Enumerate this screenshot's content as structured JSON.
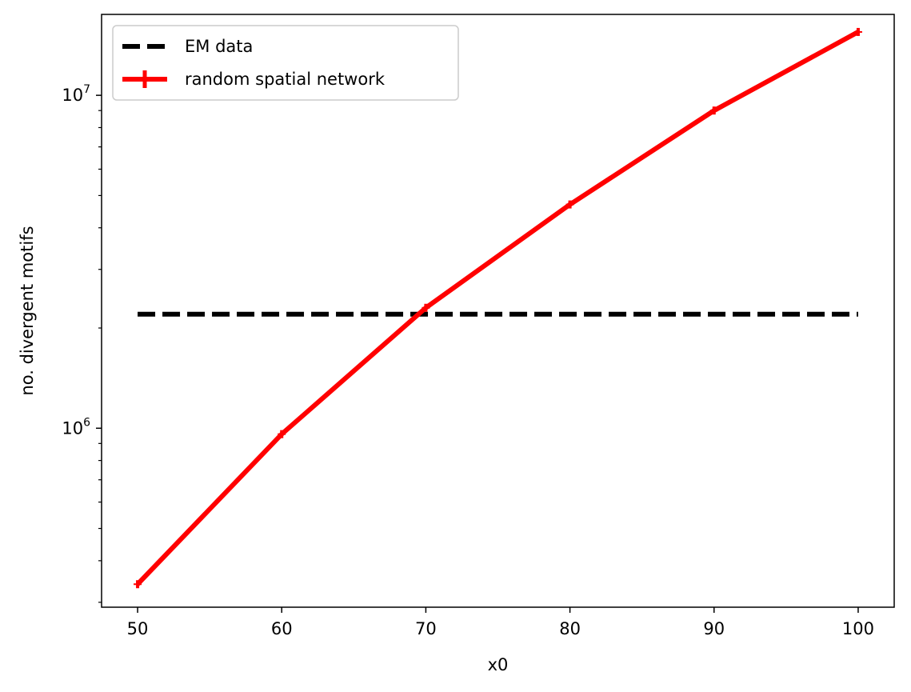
{
  "chart_data": {
    "type": "line",
    "xlabel": "x0",
    "ylabel": "no. divergent motifs",
    "yscale": "log",
    "xlim": [
      47.5,
      102.5
    ],
    "ylim": [
      290000,
      17500000
    ],
    "x_ticks": [
      50,
      60,
      70,
      80,
      90,
      100
    ],
    "x_tick_labels": [
      "50",
      "60",
      "70",
      "80",
      "90",
      "100"
    ],
    "y_major_ticks": [
      {
        "value": 1000000,
        "base": "10",
        "exp": "6"
      },
      {
        "value": 10000000,
        "base": "10",
        "exp": "7"
      }
    ],
    "y_minor_ticks": [
      300000,
      400000,
      500000,
      600000,
      700000,
      800000,
      900000,
      2000000,
      3000000,
      4000000,
      5000000,
      6000000,
      7000000,
      8000000,
      9000000
    ],
    "grid": false,
    "legend_position": "upper-left",
    "series": [
      {
        "name": "EM data",
        "style": "dashed",
        "color": "#000000",
        "x": [
          50,
          100
        ],
        "y": [
          2200000,
          2200000
        ]
      },
      {
        "name": "random spatial network",
        "style": "solid-errorbar",
        "color": "#ff0000",
        "x": [
          50,
          60,
          70,
          80,
          90,
          100
        ],
        "y": [
          340000,
          960000,
          2300000,
          4700000,
          9000000,
          15500000
        ]
      }
    ]
  }
}
